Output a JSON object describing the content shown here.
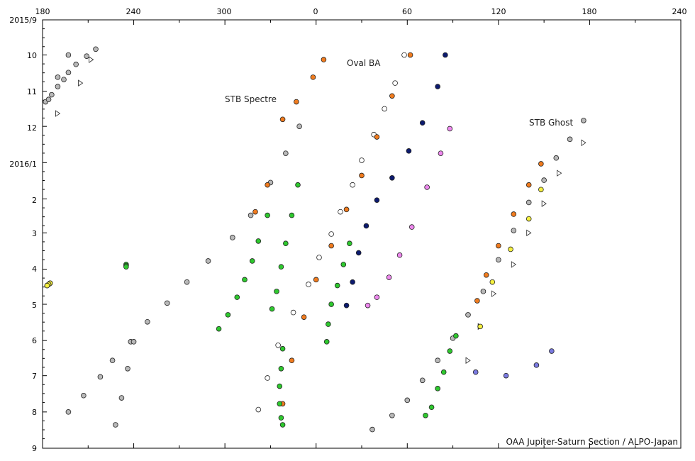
{
  "chart_data": {
    "type": "scatter",
    "title": "",
    "xlabel": "",
    "ylabel": "",
    "x_tick_labels": [
      "180",
      "240",
      "300",
      "0",
      "60",
      "120",
      "180",
      "240"
    ],
    "y_tick_labels": [
      "2015/9",
      "10",
      "11",
      "12",
      "2016/1",
      "2",
      "3",
      "4",
      "5",
      "6",
      "7",
      "8",
      "9"
    ],
    "xlim_note": "System II longitude, 180 to 240 through 360/0",
    "ylim": [
      "2015-09-01",
      "2016-09-01"
    ],
    "grid": false,
    "annotations": [
      "Oval BA",
      "STB Spectre",
      "STB Ghost"
    ],
    "credit": "OAA Jupiter-Saturn Section / ALPO-Japan",
    "marker_colors": {
      "gray": "#b8b8b8",
      "white": "#ffffff",
      "orange": "#f07b1e",
      "yellow": "#f5f040",
      "green": "#2ec82e",
      "blue": "#7a7ae0",
      "navy": "#0c1a6e",
      "pink": "#ee88ee"
    },
    "tracks": [
      {
        "color": "gray",
        "marker": "circle",
        "x": [
          215,
          209,
          202,
          197,
          194,
          190,
          186,
          182
        ],
        "y": [
          "2015-09-26",
          "2015-10-02",
          "2015-10-09",
          "2015-10-16",
          "2015-10-22",
          "2015-10-28",
          "2015-11-04",
          "2015-11-10"
        ]
      },
      {
        "color": "gray",
        "marker": "circle",
        "x": [
          349,
          340,
          330,
          317,
          305,
          289,
          275,
          262,
          249,
          238,
          226,
          218,
          207,
          197
        ],
        "y": [
          "2015-12-01",
          "2015-12-24",
          "2016-01-18",
          "2016-02-15",
          "2016-03-05",
          "2016-03-25",
          "2016-04-12",
          "2016-04-30",
          "2016-05-16",
          "2016-06-02",
          "2016-06-18",
          "2016-07-02",
          "2016-07-18",
          "2016-08-01"
        ]
      },
      {
        "color": "orange",
        "marker": "circle",
        "x": [
          5,
          358,
          347,
          338,
          328,
          320
        ],
        "y": [
          "2015-10-05",
          "2015-10-20",
          "2015-11-10",
          "2015-11-25",
          "2016-01-20",
          "2016-02-12"
        ]
      },
      {
        "color": "white",
        "marker": "circle",
        "x": [
          58,
          52,
          45,
          38,
          30,
          24,
          16,
          10,
          2,
          355,
          345,
          335,
          328,
          322
        ],
        "y": [
          "2015-10-01",
          "2015-10-25",
          "2015-11-16",
          "2015-12-08",
          "2015-12-30",
          "2016-01-20",
          "2016-02-12",
          "2016-03-02",
          "2016-03-22",
          "2016-04-14",
          "2016-05-08",
          "2016-06-05",
          "2016-07-03",
          "2016-07-30"
        ]
      },
      {
        "color": "orange",
        "marker": "circle",
        "x": [
          62,
          50,
          40,
          30,
          20,
          10,
          0,
          352,
          344,
          338
        ],
        "y": [
          "2015-10-01",
          "2015-11-05",
          "2015-12-10",
          "2016-01-12",
          "2016-02-10",
          "2016-03-12",
          "2016-04-10",
          "2016-05-12",
          "2016-06-18",
          "2016-07-25"
        ]
      },
      {
        "color": "navy",
        "marker": "circle",
        "x": [
          85,
          80,
          70,
          61,
          50,
          40,
          33,
          28,
          24,
          20
        ],
        "y": [
          "2015-10-01",
          "2015-10-28",
          "2015-11-28",
          "2015-12-22",
          "2016-01-14",
          "2016-02-02",
          "2016-02-24",
          "2016-03-18",
          "2016-04-12",
          "2016-05-02"
        ]
      },
      {
        "color": "pink",
        "marker": "circle",
        "x": [
          88,
          82,
          73,
          63,
          55,
          48,
          40,
          34
        ],
        "y": [
          "2015-12-03",
          "2015-12-24",
          "2016-01-22",
          "2016-02-25",
          "2016-03-20",
          "2016-04-08",
          "2016-04-25",
          "2016-05-02"
        ]
      },
      {
        "color": "green",
        "marker": "circle",
        "x": [
          328,
          322,
          318,
          313,
          308,
          302,
          296
        ],
        "y": [
          "2016-02-15",
          "2016-03-08",
          "2016-03-25",
          "2016-04-10",
          "2016-04-25",
          "2016-05-10",
          "2016-05-22"
        ]
      },
      {
        "color": "green",
        "marker": "circle",
        "x": [
          348,
          344,
          340,
          337,
          334,
          331
        ],
        "y": [
          "2016-01-20",
          "2016-02-15",
          "2016-03-10",
          "2016-03-30",
          "2016-04-20",
          "2016-05-05"
        ]
      },
      {
        "color": "green",
        "marker": "circle",
        "x": [
          22,
          18,
          14,
          10,
          8,
          7
        ],
        "y": [
          "2016-03-10",
          "2016-03-28",
          "2016-04-15",
          "2016-05-01",
          "2016-05-18",
          "2016-06-02"
        ]
      },
      {
        "color": "green",
        "marker": "circle",
        "x": [
          338,
          337,
          336,
          336,
          337,
          338
        ],
        "y": [
          "2016-06-08",
          "2016-06-25",
          "2016-07-10",
          "2016-07-25",
          "2016-08-06",
          "2016-08-12"
        ]
      },
      {
        "color": "white",
        "marker": "triangle",
        "x": [
          212,
          205,
          190,
          176,
          160,
          150,
          140,
          130,
          117,
          108,
          100
        ],
        "y": [
          "2015-10-05",
          "2015-10-25",
          "2015-11-20",
          "2015-12-15",
          "2016-01-10",
          "2016-02-05",
          "2016-03-01",
          "2016-03-28",
          "2016-04-22",
          "2016-05-20",
          "2016-06-18"
        ]
      },
      {
        "color": "gray",
        "marker": "circle",
        "x": [
          197,
          190,
          184,
          176,
          167,
          158,
          150,
          140,
          130,
          120,
          110,
          100,
          90,
          80,
          70,
          60,
          50,
          37
        ],
        "y": [
          "2015-10-01",
          "2015-10-20",
          "2015-11-08",
          "2015-11-26",
          "2015-12-12",
          "2015-12-28",
          "2016-01-16",
          "2016-02-04",
          "2016-02-28",
          "2016-03-24",
          "2016-04-20",
          "2016-05-10",
          "2016-05-30",
          "2016-06-18",
          "2016-07-05",
          "2016-07-22",
          "2016-08-04",
          "2016-08-16"
        ]
      },
      {
        "color": "orange",
        "marker": "circle",
        "x": [
          148,
          140,
          130,
          120,
          112,
          106
        ],
        "y": [
          "2016-01-02",
          "2016-01-20",
          "2016-02-14",
          "2016-03-12",
          "2016-04-06",
          "2016-04-28"
        ]
      },
      {
        "color": "yellow",
        "marker": "circle",
        "x": [
          148,
          140,
          128,
          116,
          108
        ],
        "y": [
          "2016-01-24",
          "2016-02-18",
          "2016-03-15",
          "2016-04-12",
          "2016-05-20"
        ]
      },
      {
        "color": "green",
        "marker": "circle",
        "x": [
          92,
          88,
          84,
          80,
          76,
          72
        ],
        "y": [
          "2016-05-28",
          "2016-06-10",
          "2016-06-28",
          "2016-07-12",
          "2016-07-28",
          "2016-08-04"
        ]
      },
      {
        "color": "blue",
        "marker": "circle",
        "x": [
          105,
          125,
          145,
          155
        ],
        "y": [
          "2016-06-28",
          "2016-07-01",
          "2016-06-22",
          "2016-06-10"
        ]
      },
      {
        "color": "gray",
        "marker": "circle",
        "x": [
          228,
          232,
          236,
          240
        ],
        "y": [
          "2016-08-12",
          "2016-07-20",
          "2016-06-25",
          "2016-06-02"
        ]
      },
      {
        "color": "yellow",
        "marker": "circle",
        "x": [
          185,
          184,
          183
        ],
        "y": [
          "2016-04-13",
          "2016-04-14",
          "2016-04-15"
        ]
      },
      {
        "color": "green",
        "marker": "circle",
        "x": [
          235,
          235,
          235
        ],
        "y": [
          "2016-03-28",
          "2016-03-29",
          "2016-03-30"
        ]
      },
      {
        "color": "yellow",
        "marker": "circle",
        "x": [
          185,
          184,
          183
        ],
        "y": [
          "2016-04-13",
          "2016-04-14",
          "2016-04-15"
        ]
      }
    ]
  }
}
